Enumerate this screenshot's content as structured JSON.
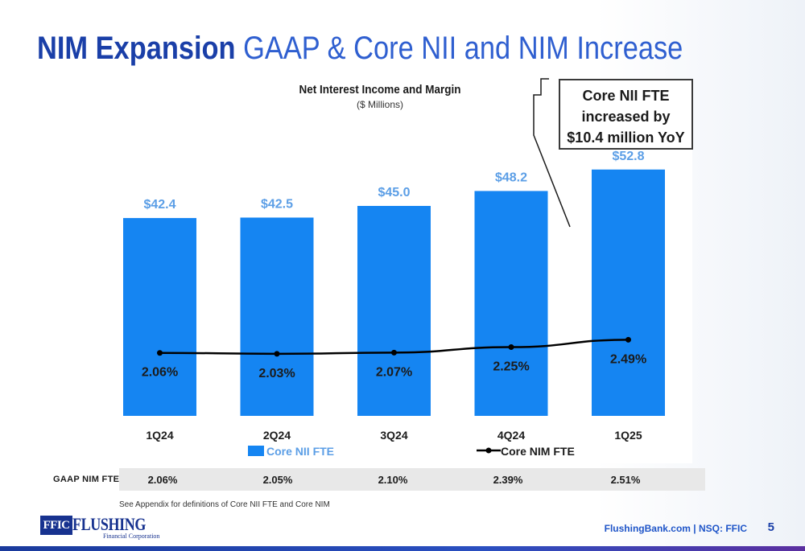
{
  "slide": {
    "title_bold": "NIM Expansion",
    "title_light": "GAAP & Core NII and NIM Increase",
    "page_number": "5",
    "footer_text": "FlushingBank.com  |  NSQ: FFIC",
    "footnote": "See Appendix for definitions of Core NII FTE and Core NIM",
    "logo_mark": "FFIC",
    "logo_word": "FLUSHING",
    "logo_sub": "Financial Corporation"
  },
  "callout": {
    "text": "Core NII FTE\nincreased by\n$10.4 million YoY"
  },
  "colors": {
    "bar": "#1585f2",
    "bar_label": "#5b9ee6",
    "line": "#000000",
    "title_blue": "#1e4fbd"
  },
  "chart_data": {
    "type": "bar",
    "title": "Net Interest Income and Margin",
    "subtitle": "($ Millions)",
    "categories": [
      "1Q24",
      "2Q24",
      "3Q24",
      "4Q24",
      "1Q25"
    ],
    "series": [
      {
        "name": "Core NII FTE",
        "type": "bar",
        "values": [
          42.4,
          42.5,
          45.0,
          48.2,
          52.8
        ],
        "labels": [
          "$42.4",
          "$42.5",
          "$45.0",
          "$48.2",
          "$52.8"
        ]
      },
      {
        "name": "Core NIM FTE",
        "type": "line",
        "values": [
          2.06,
          2.03,
          2.07,
          2.25,
          2.49
        ],
        "labels": [
          "2.06%",
          "2.03%",
          "2.07%",
          "2.25%",
          "2.49%"
        ]
      }
    ],
    "ylim": [
      0,
      60
    ],
    "y2lim": [
      0,
      6
    ],
    "legend_position": "bottom",
    "grid": false
  },
  "gaap_nim": {
    "label": "GAAP NIM FTE",
    "values": [
      "2.06%",
      "2.05%",
      "2.10%",
      "2.39%",
      "2.51%"
    ]
  }
}
